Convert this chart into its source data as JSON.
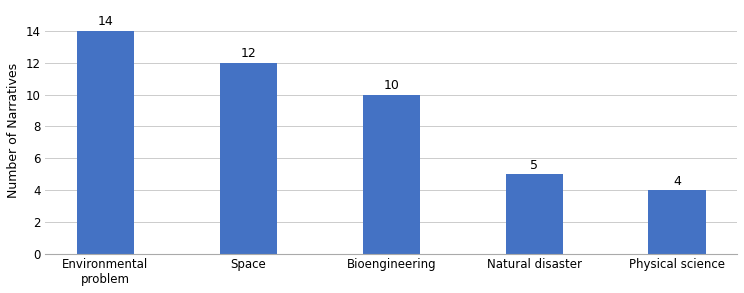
{
  "categories": [
    "Environmental\nproblem",
    "Space",
    "Bioengineering",
    "Natural disaster",
    "Physical science"
  ],
  "values": [
    14,
    12,
    10,
    5,
    4
  ],
  "bar_color": "#4472C4",
  "ylabel": "Number of Narratives",
  "ylim": [
    0,
    15.5
  ],
  "yticks": [
    0,
    2,
    4,
    6,
    8,
    10,
    12,
    14
  ],
  "bar_width": 0.4,
  "label_fontsize": 9,
  "tick_fontsize": 8.5,
  "ylabel_fontsize": 9,
  "grid_color": "#cccccc",
  "grid_linewidth": 0.7
}
